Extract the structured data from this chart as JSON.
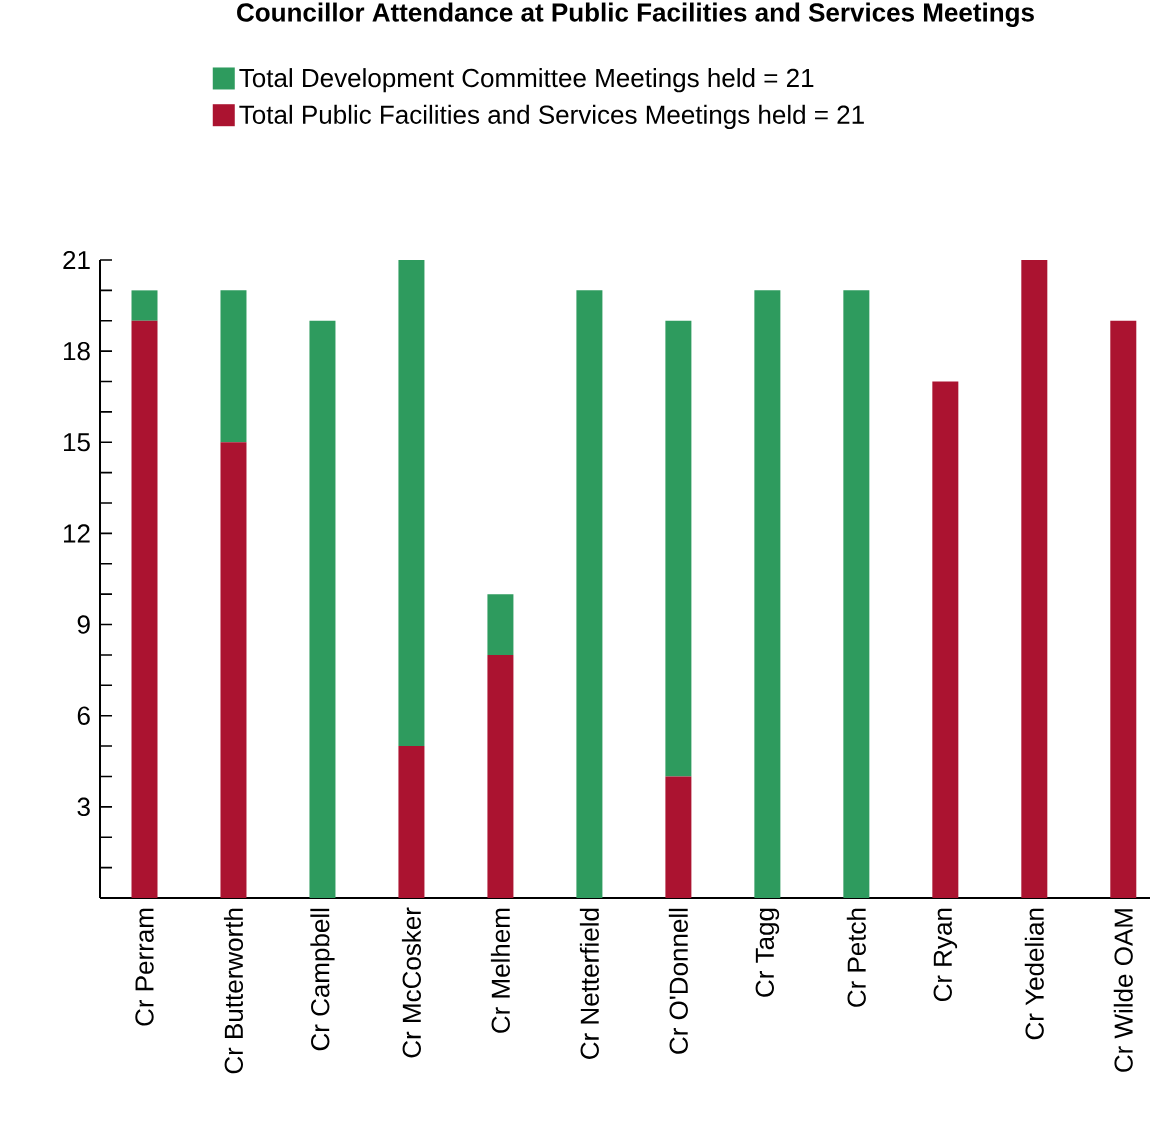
{
  "chart_data": {
    "type": "bar",
    "title": "Councillor Attendance at Public Facilities and Services Meetings",
    "stacked": true,
    "legend": "top",
    "categories": [
      "Cr Perram",
      "Cr Butterworth",
      "Cr Campbell",
      "Cr McCosker",
      "Cr Melhem",
      "Cr Netterfield",
      "Cr O'Donnell",
      "Cr Tagg",
      "Cr Petch",
      "Cr Ryan",
      "Cr Yedelian",
      "Cr Wilde OAM"
    ],
    "series": [
      {
        "name": "Total Public Facilities and Services Meetings held = 21",
        "color": "#ab1330",
        "values": [
          19,
          15,
          0,
          5,
          8,
          0,
          4,
          0,
          0,
          17,
          21,
          19
        ]
      },
      {
        "name": "Total Development Committee Meetings held = 21",
        "color": "#2e9b5e",
        "values": [
          1,
          5,
          19,
          16,
          2,
          20,
          15,
          20,
          20,
          0,
          0,
          0
        ]
      }
    ],
    "ylim": [
      0,
      21
    ],
    "yticks": [
      {
        "value": 1,
        "label": null
      },
      {
        "value": 2,
        "label": null
      },
      3,
      {
        "value": 4,
        "label": null
      },
      {
        "value": 5,
        "label": null
      },
      6,
      {
        "value": 7,
        "label": null
      },
      {
        "value": 8,
        "label": null
      },
      9,
      {
        "value": 10,
        "label": null
      },
      {
        "value": 11,
        "label": null
      },
      12,
      {
        "value": 13,
        "label": null
      },
      {
        "value": 14,
        "label": null
      },
      15,
      {
        "value": 16,
        "label": null
      },
      {
        "value": 17,
        "label": null
      },
      18,
      {
        "value": 19,
        "label": null
      },
      {
        "value": 20,
        "label": null
      },
      21
    ]
  }
}
